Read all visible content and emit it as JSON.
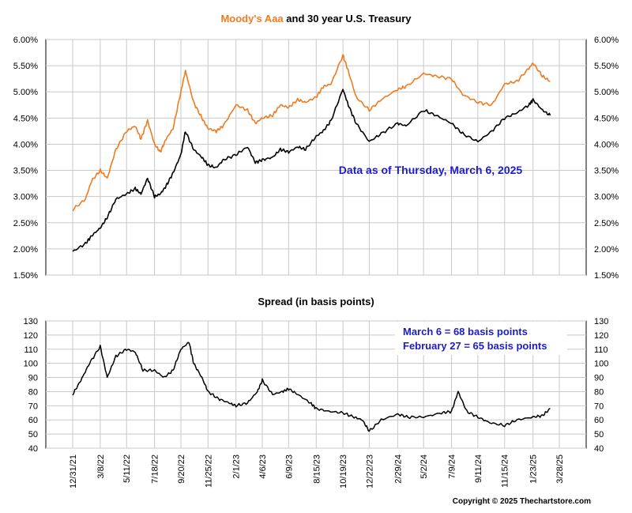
{
  "chart_data": [
    {
      "type": "line",
      "title_parts": {
        "aaa": "Moody's Aaa",
        "rest": " and 30 year U.S. Treasury"
      },
      "ylim": [
        1.5,
        6.0
      ],
      "y_ticks": [
        "1.50%",
        "2.00%",
        "2.50%",
        "3.00%",
        "3.50%",
        "4.00%",
        "4.50%",
        "5.00%",
        "5.50%",
        "6.00%"
      ],
      "annotation": "Data as of Thursday, March 6, 2025",
      "grid": true,
      "series": [
        {
          "label": "Moody's Aaa",
          "color": "#f07a1e",
          "x": [
            "12/31/21",
            "1/31/22",
            "2/15/22",
            "3/8/22",
            "3/25/22",
            "4/15/22",
            "5/11/22",
            "6/1/22",
            "6/15/22",
            "7/1/22",
            "7/18/22",
            "8/1/22",
            "8/15/22",
            "9/1/22",
            "9/20/22",
            "10/1/22",
            "10/21/22",
            "11/10/22",
            "11/25/22",
            "12/15/22",
            "1/1/23",
            "2/1/23",
            "3/1/23",
            "3/20/23",
            "4/6/23",
            "5/1/23",
            "5/20/23",
            "6/9/23",
            "7/1/23",
            "7/20/23",
            "8/15/23",
            "9/1/23",
            "9/20/23",
            "10/19/23",
            "11/1/23",
            "11/20/23",
            "12/22/23",
            "1/20/24",
            "2/29/24",
            "3/20/24",
            "5/2/24",
            "6/1/24",
            "7/9/24",
            "8/5/24",
            "9/11/24",
            "10/15/24",
            "11/15/24",
            "12/15/24",
            "1/13/25",
            "1/23/25",
            "2/15/25",
            "3/6/25"
          ],
          "y": [
            2.75,
            2.95,
            3.3,
            3.5,
            3.35,
            3.9,
            4.25,
            4.35,
            4.1,
            4.45,
            4.0,
            3.85,
            4.1,
            4.3,
            5.0,
            5.4,
            4.8,
            4.5,
            4.3,
            4.25,
            4.35,
            4.75,
            4.65,
            4.4,
            4.5,
            4.55,
            4.75,
            4.7,
            4.85,
            4.8,
            4.9,
            5.1,
            5.15,
            5.7,
            5.4,
            4.9,
            4.65,
            4.85,
            5.05,
            5.1,
            5.35,
            5.3,
            5.25,
            4.95,
            4.8,
            4.75,
            5.15,
            5.2,
            5.45,
            5.55,
            5.3,
            5.2
          ]
        },
        {
          "label": "30 year U.S. Treasury",
          "color": "#000000",
          "x": [
            "12/31/21",
            "1/31/22",
            "2/15/22",
            "3/8/22",
            "3/25/22",
            "4/15/22",
            "5/11/22",
            "6/1/22",
            "6/15/22",
            "7/1/22",
            "7/18/22",
            "8/1/22",
            "8/15/22",
            "9/1/22",
            "9/20/22",
            "10/1/22",
            "10/21/22",
            "11/10/22",
            "11/25/22",
            "12/15/22",
            "1/1/23",
            "2/1/23",
            "3/1/23",
            "3/20/23",
            "4/6/23",
            "5/1/23",
            "5/20/23",
            "6/9/23",
            "7/1/23",
            "7/20/23",
            "8/15/23",
            "9/1/23",
            "9/20/23",
            "10/19/23",
            "11/1/23",
            "11/20/23",
            "12/22/23",
            "1/20/24",
            "2/29/24",
            "3/20/24",
            "5/2/24",
            "6/1/24",
            "7/9/24",
            "8/5/24",
            "9/11/24",
            "10/15/24",
            "11/15/24",
            "12/15/24",
            "1/13/25",
            "1/23/25",
            "2/15/25",
            "3/6/25"
          ],
          "y": [
            1.95,
            2.1,
            2.25,
            2.4,
            2.6,
            2.95,
            3.05,
            3.15,
            3.05,
            3.35,
            3.0,
            3.05,
            3.2,
            3.45,
            3.8,
            4.25,
            3.9,
            3.75,
            3.6,
            3.55,
            3.7,
            3.8,
            3.95,
            3.65,
            3.7,
            3.75,
            3.9,
            3.85,
            3.95,
            3.9,
            4.15,
            4.25,
            4.45,
            5.05,
            4.75,
            4.4,
            4.05,
            4.2,
            4.4,
            4.35,
            4.65,
            4.55,
            4.4,
            4.2,
            4.05,
            4.25,
            4.5,
            4.6,
            4.75,
            4.85,
            4.65,
            4.55
          ]
        }
      ]
    },
    {
      "type": "line",
      "title": "Spread (in basis points)",
      "ylim": [
        40,
        130
      ],
      "y_ticks": [
        "40",
        "50",
        "60",
        "70",
        "80",
        "90",
        "100",
        "110",
        "120",
        "130"
      ],
      "x_ticks": [
        "12/31/21",
        "3/8/22",
        "5/11/22",
        "7/18/22",
        "9/20/22",
        "11/25/22",
        "2/1/23",
        "4/6/23",
        "6/9/23",
        "8/15/23",
        "10/19/23",
        "12/22/23",
        "2/29/24",
        "5/2/24",
        "7/9/24",
        "9/11/24",
        "11/15/24",
        "1/23/25",
        "3/28/25"
      ],
      "annotations": [
        "March 6 = 68 basis points",
        "February 27 = 65 basis points"
      ],
      "grid": true,
      "series": [
        {
          "label": "Spread",
          "color": "#000000",
          "x": [
            "12/31/21",
            "1/20/22",
            "2/10/22",
            "3/8/22",
            "3/25/22",
            "4/15/22",
            "5/11/22",
            "6/1/22",
            "6/20/22",
            "7/18/22",
            "8/10/22",
            "9/1/22",
            "9/20/22",
            "10/10/22",
            "10/21/22",
            "11/10/22",
            "11/25/22",
            "12/20/22",
            "1/15/23",
            "2/1/23",
            "3/1/23",
            "3/25/23",
            "4/6/23",
            "5/1/23",
            "5/25/23",
            "6/9/23",
            "7/1/23",
            "8/1/23",
            "8/15/23",
            "9/15/23",
            "10/19/23",
            "11/15/23",
            "12/5/23",
            "12/22/23",
            "1/20/24",
            "2/29/24",
            "3/25/24",
            "5/2/24",
            "6/15/24",
            "7/9/24",
            "7/25/24",
            "8/15/24",
            "9/11/24",
            "10/10/24",
            "11/15/24",
            "12/15/24",
            "1/23/25",
            "2/15/25",
            "3/6/25"
          ],
          "y": [
            78,
            88,
            100,
            112,
            90,
            105,
            110,
            108,
            95,
            95,
            90,
            95,
            110,
            115,
            100,
            90,
            80,
            75,
            72,
            70,
            72,
            80,
            88,
            78,
            80,
            82,
            78,
            72,
            68,
            66,
            65,
            62,
            60,
            52,
            60,
            64,
            62,
            62,
            65,
            66,
            80,
            66,
            62,
            58,
            56,
            60,
            62,
            63,
            68
          ]
        }
      ]
    }
  ],
  "copyright": "Copyright © 2025 Thechartstore.com"
}
